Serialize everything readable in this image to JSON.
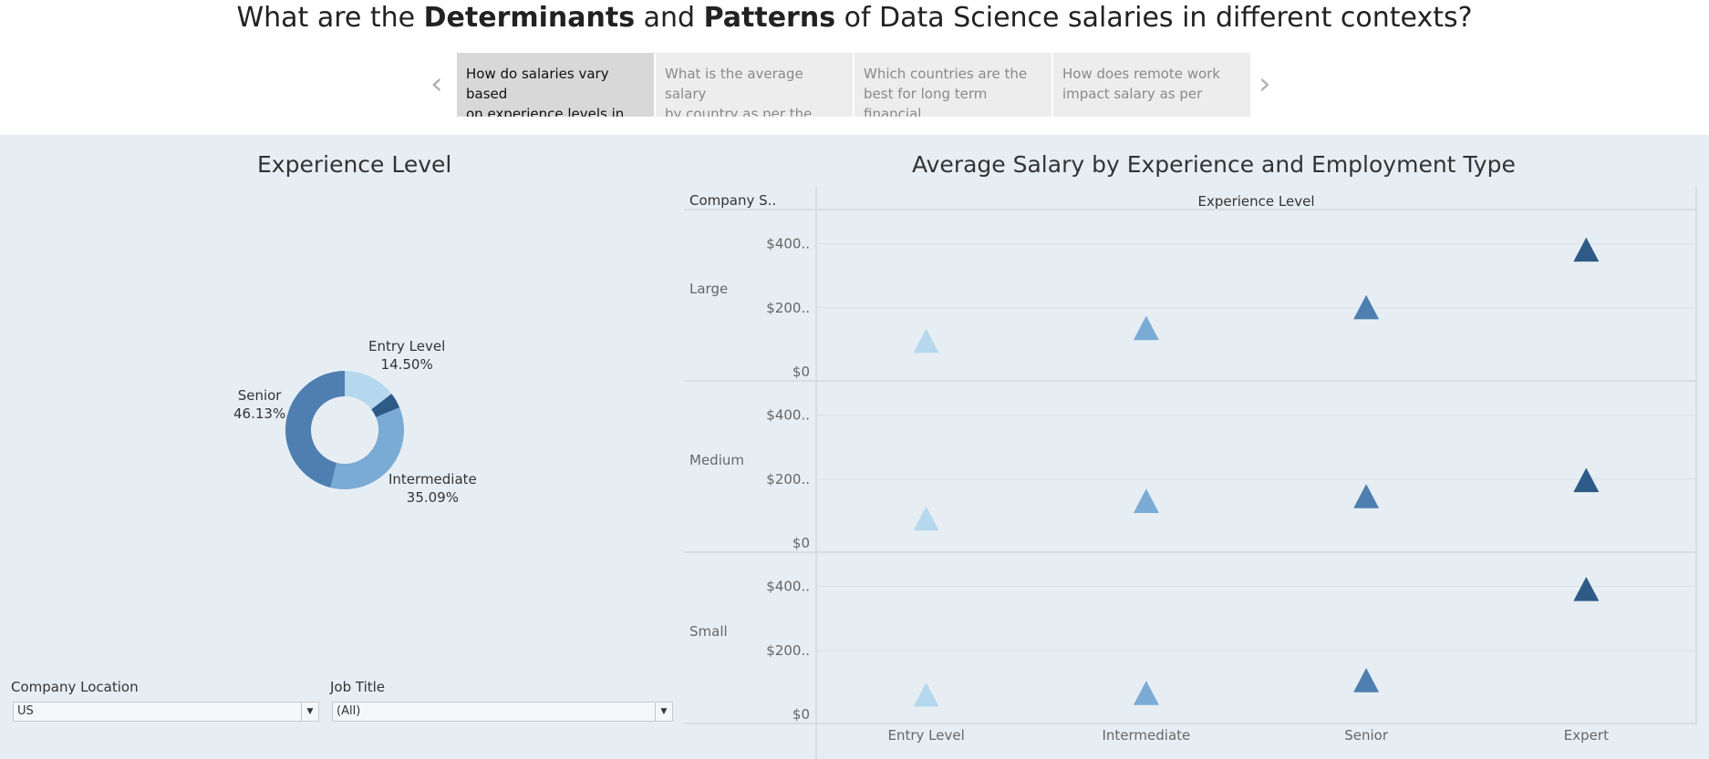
{
  "title": {
    "p1": "What are the ",
    "b1": "Determinants",
    "p2": " and ",
    "b2": "Patterns",
    "p3": " of Data Science salaries in different contexts?"
  },
  "story_nav": {
    "prev_icon": "chevron-left-icon",
    "next_icon": "chevron-right-icon",
    "points": [
      {
        "line1": "How do salaries vary based",
        "line2": "on experience levels in the",
        "active": true
      },
      {
        "line1": "What is the average salary",
        "line2": "by country as per the",
        "active": false
      },
      {
        "line1": "Which countries are the",
        "line2": "best for long term financial",
        "active": false
      },
      {
        "line1": "How does remote work",
        "line2": "impact salary as per",
        "active": false
      }
    ]
  },
  "donut": {
    "title": "Experience Level",
    "labels": [
      {
        "name": "Entry Level",
        "pct": "14.50%"
      },
      {
        "name": "Intermediate",
        "pct": "35.09%"
      },
      {
        "name": "Senior",
        "pct": "46.13%"
      }
    ]
  },
  "filters": {
    "location": {
      "label": "Company Location",
      "value": "US"
    },
    "job_title": {
      "label": "Job Title",
      "value": "(All)"
    }
  },
  "chart_title": "Average Salary by Experience and Employment Type",
  "chart_data": [
    {
      "type": "pie",
      "title": "Experience Level",
      "categories": [
        "Entry Level",
        "Expert",
        "Intermediate",
        "Senior"
      ],
      "values": [
        14.5,
        4.28,
        35.09,
        46.13
      ],
      "colors": [
        "#b6d8ee",
        "#2e5a87",
        "#7aabd4",
        "#4e7fb0"
      ],
      "labels_shown": [
        "Entry Level",
        "Intermediate",
        "Senior"
      ]
    },
    {
      "type": "scatter",
      "title": "Average Salary by Experience and Employment Type",
      "row_header": "Company S..",
      "column_header": "Experience Level",
      "categories": [
        "Entry Level",
        "Intermediate",
        "Senior",
        "Expert"
      ],
      "tick_labels": [
        "$0",
        "$200..",
        "$400.."
      ],
      "ylim": [
        0,
        450000
      ],
      "colors": [
        "#b6d8ee",
        "#7aabd4",
        "#4e7fb0",
        "#2e5a87"
      ],
      "marker": "triangle",
      "rows": [
        {
          "name": "Large",
          "values": [
            95000,
            135000,
            200000,
            380000
          ]
        },
        {
          "name": "Medium",
          "values": [
            75000,
            130000,
            145000,
            195000
          ]
        },
        {
          "name": "Small",
          "values": [
            60000,
            65000,
            105000,
            390000
          ]
        }
      ]
    }
  ]
}
